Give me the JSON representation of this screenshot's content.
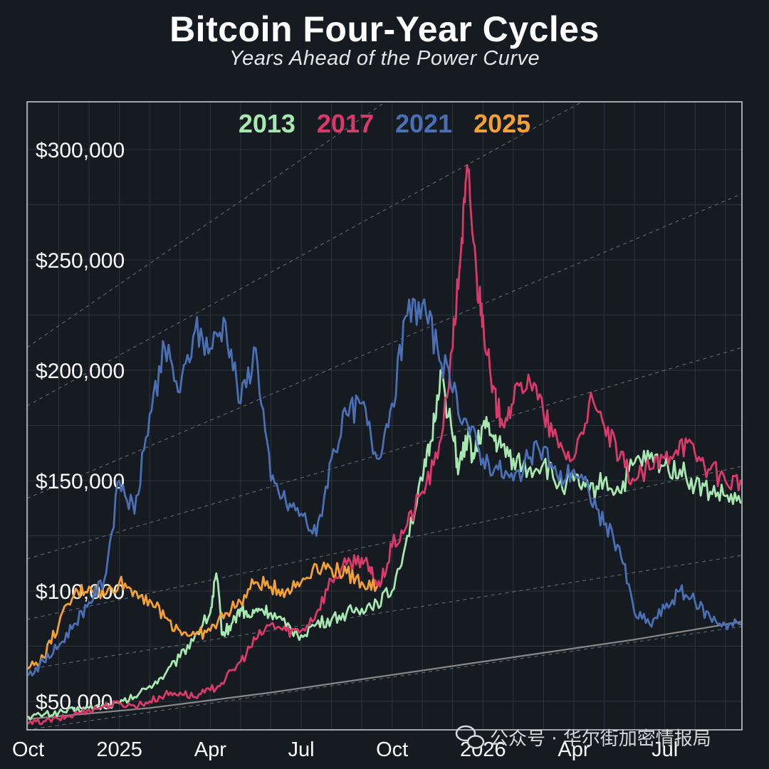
{
  "chart_data": {
    "type": "line",
    "title": "Bitcoin Four-Year Cycles",
    "subtitle": "Years Ahead of the Power Curve",
    "ylim": [
      30000,
      320000
    ],
    "yticks": [
      {
        "value": 50000,
        "label": "$50,000"
      },
      {
        "value": 100000,
        "label": "$100,000"
      },
      {
        "value": 150000,
        "label": "$150,000"
      },
      {
        "value": 200000,
        "label": "$200,000"
      },
      {
        "value": 250000,
        "label": "$250,000"
      },
      {
        "value": 300000,
        "label": "$300,000"
      }
    ],
    "xlim": [
      0,
      23.5
    ],
    "xticks": [
      {
        "value": 0,
        "label": "Oct"
      },
      {
        "value": 3,
        "label": "2025"
      },
      {
        "value": 6,
        "label": "Apr"
      },
      {
        "value": 9,
        "label": "Jul"
      },
      {
        "value": 12,
        "label": "Oct"
      },
      {
        "value": 15,
        "label": "2026"
      },
      {
        "value": 18,
        "label": "Apr"
      },
      {
        "value": 21,
        "label": "Jul"
      }
    ],
    "x_unit": "months from Oct 2024",
    "grid": true,
    "legend_position": "top",
    "series": [
      {
        "name": "2013",
        "color": "#a6e8b0",
        "x": [
          0,
          0.5,
          1,
          1.5,
          2,
          2.5,
          3,
          3.5,
          4,
          4.5,
          5,
          5.5,
          6,
          6.2,
          6.4,
          6.7,
          7,
          7.3,
          7.6,
          8,
          8.5,
          9,
          9.5,
          10,
          10.5,
          11,
          11.5,
          12,
          12.5,
          13,
          13.3,
          13.6,
          14,
          14.2,
          14.5,
          14.7,
          15,
          15.3,
          15.6,
          16,
          16.5,
          17,
          17.5,
          18,
          18.5,
          19,
          19.5,
          20,
          20.5,
          21,
          21.5,
          22,
          22.5,
          23,
          23.5
        ],
        "values": [
          43000,
          44000,
          45000,
          46000,
          47000,
          48000,
          49000,
          52000,
          57000,
          62000,
          70000,
          80000,
          90000,
          108000,
          80000,
          85000,
          92000,
          88000,
          92000,
          90000,
          84000,
          80000,
          85000,
          87000,
          90000,
          92000,
          95000,
          100000,
          125000,
          150000,
          168000,
          200000,
          170000,
          155000,
          170000,
          160000,
          175000,
          170000,
          165000,
          160000,
          155000,
          158000,
          148000,
          150000,
          145000,
          150000,
          145000,
          158000,
          160000,
          157000,
          155000,
          148000,
          145000,
          143000,
          140000
        ]
      },
      {
        "name": "2017",
        "color": "#d93a6a",
        "x": [
          0,
          0.5,
          1,
          1.5,
          2,
          2.5,
          3,
          3.5,
          4,
          4.5,
          5,
          5.5,
          6,
          6.5,
          7,
          7.5,
          8,
          8.5,
          9,
          9.5,
          10,
          10.5,
          11,
          11.3,
          11.6,
          12,
          12.5,
          13,
          13.5,
          14,
          14.3,
          14.5,
          14.8,
          15,
          15.3,
          15.6,
          16,
          16.5,
          17,
          17.5,
          18,
          18.5,
          19,
          19.5,
          20,
          20.5,
          21,
          21.5,
          22,
          22.5,
          23,
          23.5
        ],
        "values": [
          40000,
          41000,
          42000,
          44000,
          46000,
          48000,
          49000,
          48000,
          50000,
          53000,
          54000,
          52000,
          55000,
          60000,
          68000,
          78000,
          85000,
          82000,
          82000,
          90000,
          105000,
          112000,
          115000,
          108000,
          102000,
          120000,
          130000,
          145000,
          160000,
          210000,
          260000,
          290000,
          240000,
          225000,
          190000,
          178000,
          185000,
          198000,
          180000,
          165000,
          160000,
          185000,
          175000,
          160000,
          150000,
          155000,
          160000,
          168000,
          162000,
          155000,
          150000,
          150000
        ]
      },
      {
        "name": "2021",
        "color": "#4a6fb3",
        "x": [
          0,
          0.5,
          1,
          1.5,
          2,
          2.5,
          3,
          3.5,
          4,
          4.5,
          5,
          5.5,
          6,
          6.5,
          7,
          7.5,
          8,
          8.5,
          9,
          9.5,
          10,
          10.5,
          11,
          11.5,
          12,
          12.5,
          13,
          13.5,
          14,
          14.5,
          15,
          15.5,
          16,
          16.5,
          17,
          17.5,
          18,
          18.5,
          19,
          19.5,
          20,
          20.5,
          21,
          21.5,
          22,
          22.5,
          23,
          23.5
        ],
        "values": [
          62000,
          68000,
          75000,
          85000,
          95000,
          105000,
          150000,
          135000,
          180000,
          210000,
          190000,
          218000,
          210000,
          222000,
          185000,
          210000,
          150000,
          140000,
          135000,
          125000,
          160000,
          180000,
          185000,
          160000,
          185000,
          225000,
          230000,
          210000,
          190000,
          175000,
          160000,
          155000,
          150000,
          160000,
          165000,
          150000,
          155000,
          145000,
          130000,
          120000,
          90000,
          85000,
          92000,
          100000,
          95000,
          88000,
          85000,
          85000
        ]
      },
      {
        "name": "2025",
        "color": "#f5a033",
        "x": [
          0,
          0.5,
          1,
          1.5,
          2,
          2.5,
          3,
          3.5,
          4,
          4.5,
          5,
          5.5,
          6,
          6.5,
          7,
          7.5,
          8,
          8.5,
          9,
          9.5,
          10,
          10.5,
          11,
          11.5
        ],
        "values": [
          65000,
          70000,
          85000,
          98000,
          102000,
          98000,
          104000,
          100000,
          96000,
          88000,
          82000,
          80000,
          82000,
          90000,
          95000,
          104000,
          102000,
          100000,
          104000,
          112000,
          110000,
          108000,
          104000,
          102000
        ]
      },
      {
        "name": "",
        "color": "#888888",
        "x": [
          0,
          4,
          8,
          12,
          16,
          20,
          23.5
        ],
        "values": [
          42000,
          47000,
          54000,
          62000,
          70000,
          78000,
          86000
        ]
      }
    ]
  },
  "watermark": {
    "icon": "wechat-icon",
    "text": "公众号 · 华尔街加密情报局"
  }
}
